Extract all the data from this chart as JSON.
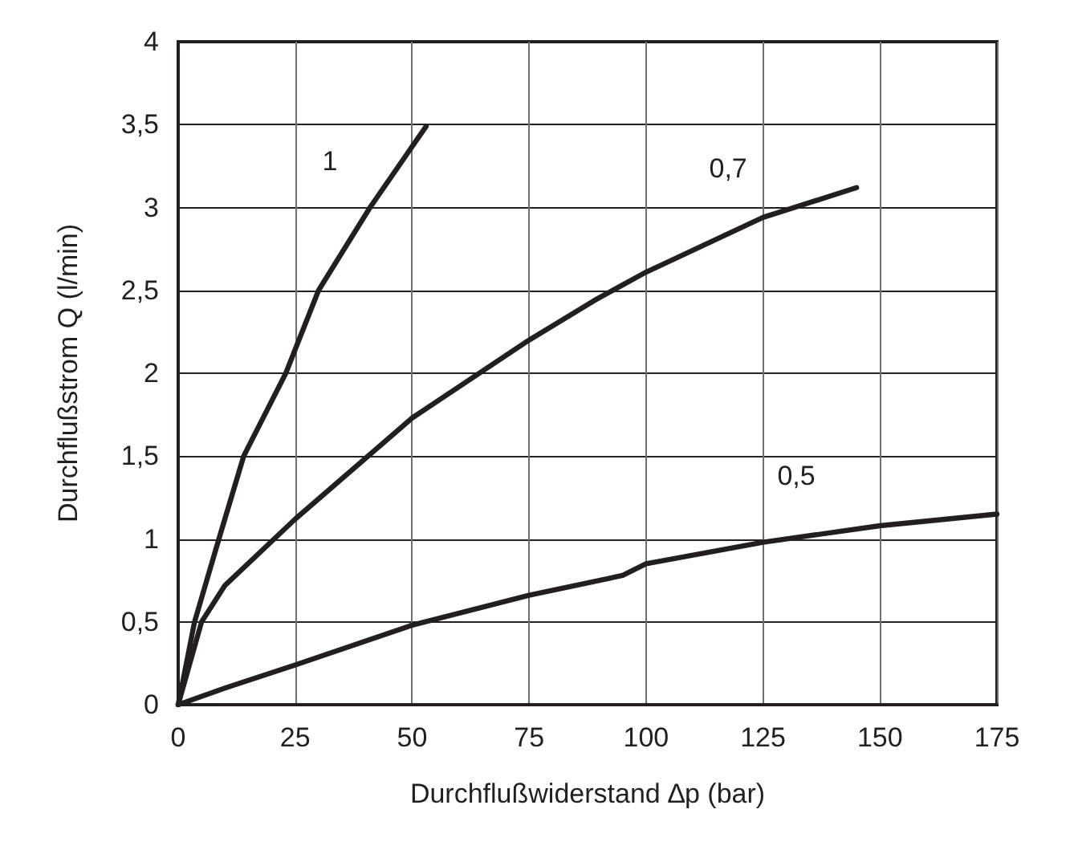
{
  "chart_data": {
    "type": "line",
    "xlabel": "Durchflußwiderstand ∆p (bar)",
    "ylabel": "Durchflußstrom Q (l/min)",
    "xlim": [
      0,
      175
    ],
    "xticks": [
      0,
      25,
      50,
      75,
      100,
      125,
      150,
      175
    ],
    "ylim": [
      0,
      4
    ],
    "yticks": [
      0,
      {
        "value": 0.5,
        "label": "0,5"
      },
      1,
      {
        "value": 1.5,
        "label": "1,5"
      },
      2,
      {
        "value": 2.5,
        "label": "2,5"
      },
      3,
      {
        "value": 3.5,
        "label": "3,5"
      },
      4
    ],
    "grid": true,
    "marker": "none",
    "line_style": "solid",
    "series": [
      {
        "name": "1",
        "color": "#231f20",
        "x": [
          0,
          3.5,
          8.7,
          14,
          23,
          30,
          41,
          53
        ],
        "values": [
          0,
          0.5,
          1,
          1.5,
          2,
          2.5,
          3,
          3.49
        ]
      },
      {
        "name": "0,7",
        "color": "#231f20",
        "x": [
          0,
          5,
          10,
          25,
          50,
          75,
          89,
          100,
          125,
          145
        ],
        "values": [
          0,
          0.5,
          0.72,
          1.12,
          1.73,
          2.2,
          2.44,
          2.61,
          2.94,
          3.12
        ]
      },
      {
        "name": "0,5",
        "color": "#231f20",
        "x": [
          0,
          10,
          25,
          50,
          75,
          95,
          100,
          125,
          150,
          175
        ],
        "values": [
          0,
          0.1,
          0.24,
          0.48,
          0.66,
          0.78,
          0.85,
          0.98,
          1.08,
          1.15
        ]
      }
    ]
  }
}
